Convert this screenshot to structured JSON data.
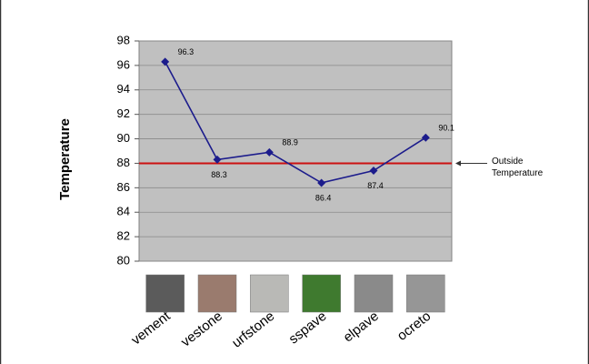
{
  "chart_data": {
    "type": "line",
    "ylabel": "Temperature",
    "categories": [
      "vement",
      "vestone",
      "urfstone",
      "sspave",
      "elpave",
      "ocreto"
    ],
    "values": [
      96.3,
      88.3,
      88.9,
      86.4,
      87.4,
      90.1
    ],
    "color": "#1c1c8c",
    "ylim": [
      80,
      98
    ],
    "yticks": [
      80,
      82,
      84,
      86,
      88,
      90,
      92,
      94,
      96,
      98
    ],
    "grid": true,
    "reference_line": {
      "value": 88,
      "color": "#cc1111",
      "label": [
        "Outside",
        "Temperature"
      ]
    }
  }
}
